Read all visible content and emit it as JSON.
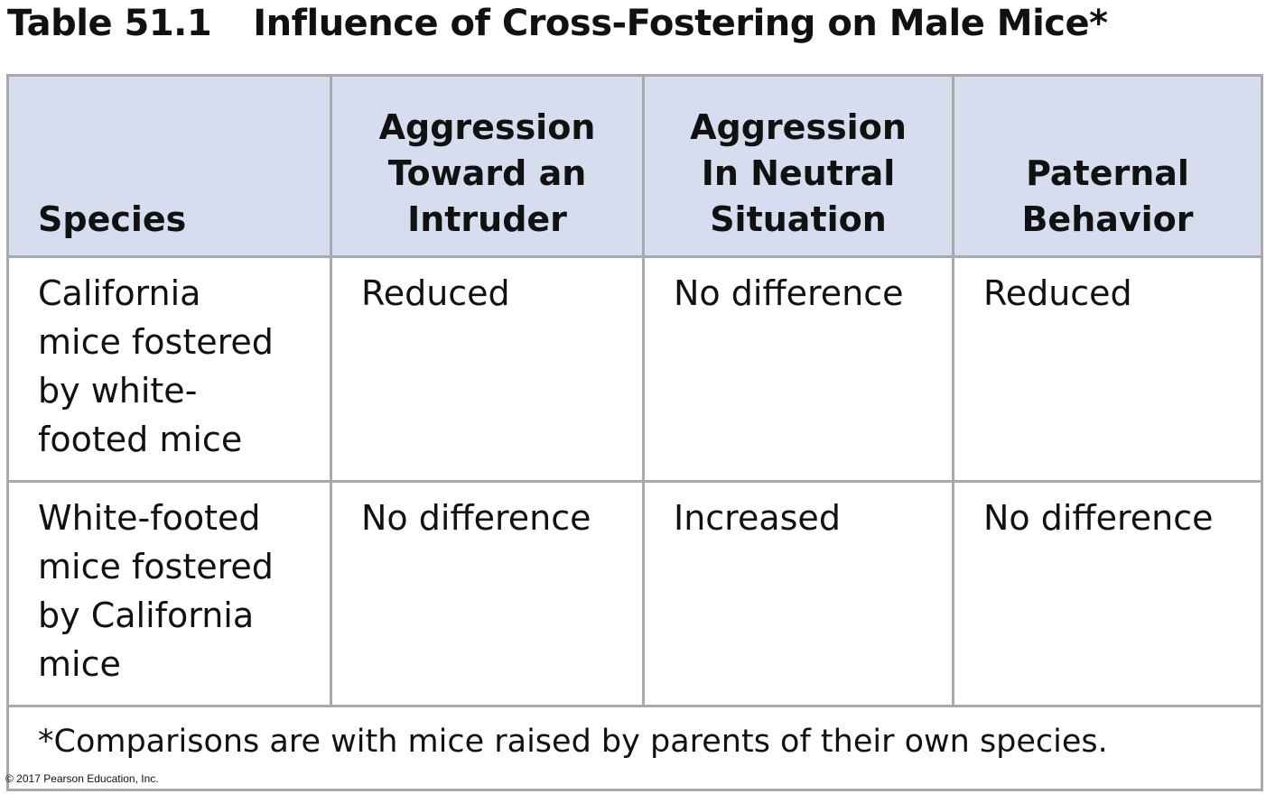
{
  "title": {
    "number": "Table 51.1",
    "caption": "Influence of Cross-Fostering on Male Mice*"
  },
  "table": {
    "headers": [
      "Species",
      "Aggression\nToward an\nIntruder",
      "Aggression\nIn Neutral\nSituation",
      "Paternal\nBehavior"
    ],
    "rows": [
      [
        "California\nmice fostered\nby white-\nfooted mice",
        "Reduced",
        "No difference",
        "Reduced"
      ],
      [
        "White-footed\nmice fostered\nby California\nmice",
        "No difference",
        "Increased",
        "No difference"
      ]
    ],
    "footnote": "*Comparisons are with mice raised by parents of their own species."
  },
  "copyright": "© 2017 Pearson Education, Inc.",
  "colors": {
    "header_background": "#d5ddef",
    "border": "#a7a9ab",
    "text": "#111111"
  }
}
